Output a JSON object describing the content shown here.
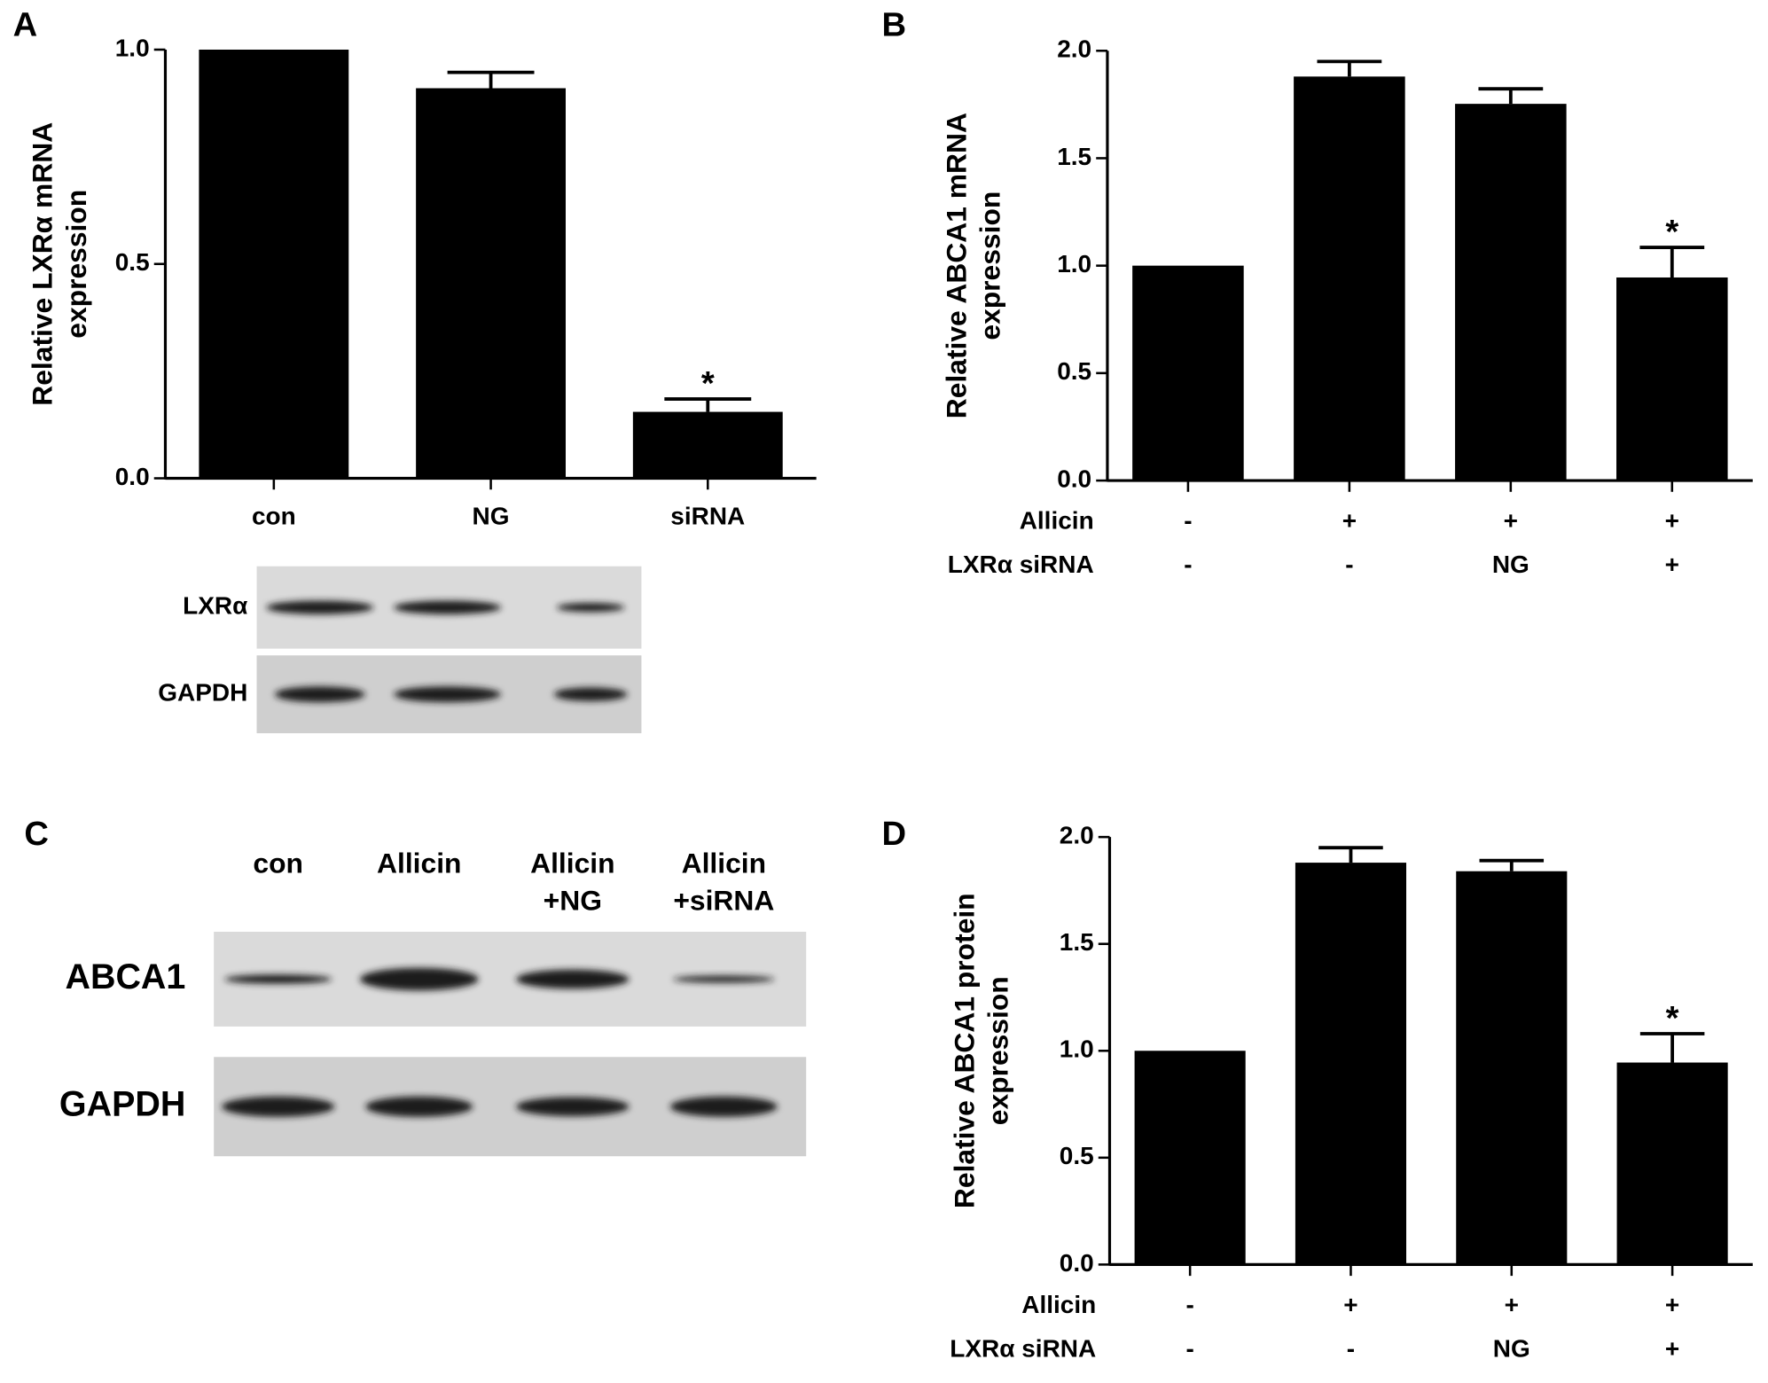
{
  "chart_data": [
    {
      "type": "bar",
      "panel_label": "A",
      "ylabel": [
        "Relative LXRα mRNA",
        "expression"
      ],
      "categories": [
        "con",
        "NG",
        "siRNA"
      ],
      "values": [
        1.0,
        0.91,
        0.155
      ],
      "errors": [
        null,
        0.037,
        0.03
      ],
      "color": "#000000",
      "ylim": [
        0,
        1.0
      ],
      "yticks": [
        {
          "value": 0,
          "label": "0.0"
        },
        {
          "value": 0.5,
          "label": "0.5"
        },
        {
          "value": 1.0,
          "label": "1.0"
        }
      ],
      "annotations": [
        {
          "text": "*",
          "index": 2
        }
      ]
    },
    {
      "type": "bar",
      "panel_label": "B",
      "ylabel": [
        "Relative ABCA1 mRNA",
        "expression"
      ],
      "category_rows": [
        {
          "name": "Allicin",
          "labels": [
            "-",
            "+",
            "+",
            "+"
          ]
        },
        {
          "name": "LXRα siRNA",
          "labels": [
            "-",
            "-",
            "NG",
            "+"
          ]
        }
      ],
      "values": [
        1.0,
        1.88,
        1.753,
        0.945
      ],
      "errors": [
        null,
        0.07,
        0.07,
        0.14
      ],
      "color": "#000000",
      "ylim": [
        0,
        2.0
      ],
      "yticks": [
        {
          "value": 0,
          "label": "0.0"
        },
        {
          "value": 0.5,
          "label": "0.5"
        },
        {
          "value": 1.0,
          "label": "1.0"
        },
        {
          "value": 1.5,
          "label": "1.5"
        },
        {
          "value": 2.0,
          "label": "2.0"
        }
      ],
      "annotations": [
        {
          "text": "*",
          "index": 3
        }
      ]
    },
    {
      "type": "bar",
      "panel_label": "D",
      "ylabel": [
        "Relative ABCA1 protein",
        "expression"
      ],
      "category_rows": [
        {
          "name": "Allicin",
          "labels": [
            "-",
            "+",
            "+",
            "+"
          ]
        },
        {
          "name": "LXRα siRNA",
          "labels": [
            "-",
            "-",
            "NG",
            "+"
          ]
        }
      ],
      "values": [
        1.0,
        1.88,
        1.84,
        0.945
      ],
      "errors": [
        null,
        0.07,
        0.05,
        0.135
      ],
      "color": "#000000",
      "ylim": [
        0,
        2.0
      ],
      "yticks": [
        {
          "value": 0,
          "label": "0.0"
        },
        {
          "value": 0.5,
          "label": "0.5"
        },
        {
          "value": 1.0,
          "label": "1.0"
        },
        {
          "value": 1.5,
          "label": "1.5"
        },
        {
          "value": 2.0,
          "label": "2.0"
        }
      ],
      "annotations": [
        {
          "text": "*",
          "index": 3
        }
      ]
    }
  ],
  "blots": [
    {
      "rows": [
        "LXRα",
        "GAPDH"
      ]
    },
    {
      "panel_label": "C",
      "columns": [
        [
          "con"
        ],
        [
          "Allicin"
        ],
        [
          "Allicin",
          "+NG"
        ],
        [
          "Allicin",
          "+siRNA"
        ]
      ],
      "rows": [
        "ABCA1",
        "GAPDH"
      ]
    }
  ]
}
